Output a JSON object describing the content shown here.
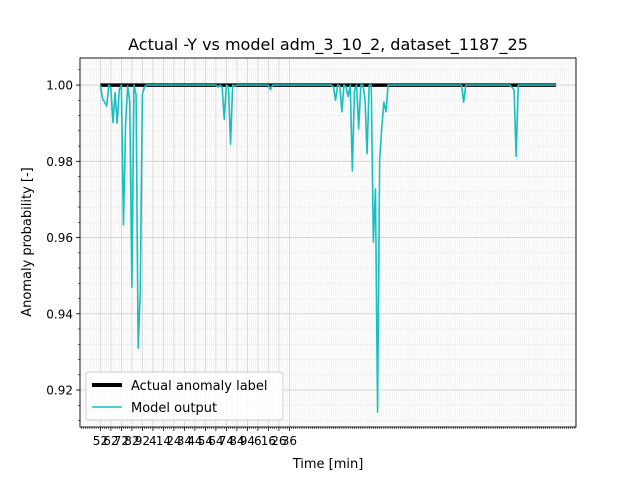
{
  "chart_data": {
    "type": "line",
    "title": "Actual -Y vs model adm_3_10_2, dataset_1187_25",
    "xlabel": "Time [min]",
    "ylabel": "Anomaly probability [-]",
    "ylim": [
      0.9103,
      1.0071
    ],
    "y_ticks": [
      "0.92",
      "0.94",
      "0.96",
      "0.98",
      "1.00"
    ],
    "y_tick_values": [
      0.92,
      0.94,
      0.96,
      0.98,
      1.0
    ],
    "x_tick_labels": [
      "52",
      "62",
      "72",
      "82",
      "92",
      "4",
      "14",
      "24",
      "34",
      "44",
      "54",
      "64",
      "74",
      "84",
      "94",
      "6",
      "16",
      "26",
      "36"
    ],
    "x_tick_start": 0,
    "x_tick_step": 10,
    "xlim": [
      -19.4,
      453
    ],
    "grid": true,
    "legend_position": "lower-left",
    "colors": {
      "actual": "#000000",
      "model": "#17bfbf"
    },
    "series": [
      {
        "name": "Actual anomaly label",
        "style": "thick-black",
        "x": [
          0,
          434
        ],
        "y": [
          1.0,
          1.0
        ]
      },
      {
        "name": "Model output",
        "style": "thin-cyan",
        "x": [
          0,
          2,
          4,
          6,
          8,
          10,
          12,
          14,
          16,
          18,
          20,
          22,
          24,
          26,
          28,
          30,
          32,
          34,
          36,
          38,
          40,
          42,
          44,
          46,
          48,
          50,
          60,
          70,
          80,
          90,
          100,
          110,
          112,
          114,
          116,
          118,
          120,
          122,
          124,
          126,
          128,
          130,
          135,
          140,
          145,
          160,
          162,
          164,
          166,
          170,
          180,
          200,
          220,
          222,
          224,
          226,
          228,
          230,
          232,
          234,
          236,
          238,
          240,
          242,
          244,
          246,
          248,
          250,
          252,
          254,
          256,
          258,
          260,
          262,
          264,
          266,
          268,
          270,
          272,
          274,
          276,
          278,
          280,
          282,
          284,
          286,
          288,
          290,
          300,
          320,
          340,
          344,
          346,
          348,
          350,
          360,
          380,
          390,
          394,
          396,
          398,
          400,
          404,
          410,
          420,
          434
        ],
        "y": [
          1.0,
          0.9965,
          0.9955,
          0.9945,
          1.0,
          0.9992,
          0.9902,
          0.998,
          0.99,
          0.9988,
          1.0,
          0.9633,
          0.9895,
          0.9998,
          0.9955,
          0.947,
          1.0,
          0.9975,
          0.931,
          0.946,
          0.9975,
          0.9995,
          1.0,
          1.0,
          1.0,
          1.0,
          1.0,
          1.0,
          1.0,
          1.0,
          1.0,
          1.0,
          0.9995,
          1.0,
          0.9995,
          0.991,
          1.0,
          0.9995,
          0.9845,
          1.0,
          0.9998,
          1.0,
          1.0,
          1.0,
          1.0,
          1.0,
          0.9988,
          1.0,
          1.0,
          1.0,
          1.0,
          1.0,
          1.0,
          0.9995,
          0.996,
          1.0,
          0.9998,
          0.993,
          1.0,
          0.9995,
          0.997,
          1.0,
          0.9775,
          0.9985,
          1.0,
          0.9885,
          1.0,
          1.0,
          0.9965,
          0.982,
          1.0,
          1.0,
          0.9588,
          0.9728,
          0.9142,
          0.9805,
          0.9888,
          0.9955,
          0.993,
          1.0,
          1.0,
          1.0,
          1.0,
          1.0,
          1.0,
          1.0,
          1.0,
          1.0,
          1.0,
          1.0,
          1.0,
          1.0,
          0.9955,
          1.0,
          1.0,
          1.0,
          1.0,
          1.0,
          0.9988,
          0.9813,
          1.0,
          1.0,
          1.0,
          1.0,
          1.0,
          1.0
        ]
      }
    ]
  }
}
